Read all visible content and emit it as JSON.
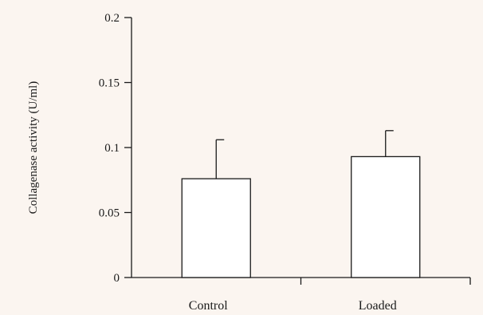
{
  "chart_data": {
    "type": "bar",
    "title": "",
    "xlabel": "",
    "ylabel": "Collagenase activity (U/ml)",
    "categories": [
      "Control",
      "Loaded"
    ],
    "values": [
      0.076,
      0.093
    ],
    "error_upper": [
      0.106,
      0.113
    ],
    "ylim": [
      0,
      0.2
    ],
    "yticks": [
      0,
      0.05,
      0.1,
      0.15,
      0.2
    ],
    "ytick_labels": [
      "0",
      "0.05",
      "0.1",
      "0.15",
      "0.2"
    ],
    "grid": false,
    "bar_fill": "#ffffff",
    "bar_stroke": "#1a1a1a",
    "background": "#fbf5f0"
  }
}
